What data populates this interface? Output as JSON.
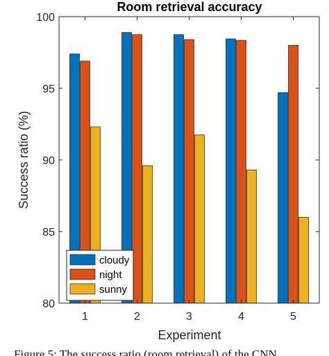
{
  "chart_data": {
    "type": "bar",
    "title": "Room  retrieval accuracy",
    "xlabel": "Experiment",
    "ylabel": "Success ratio (%)",
    "categories": [
      "1",
      "2",
      "3",
      "4",
      "5"
    ],
    "yticks": [
      "80",
      "85",
      "90",
      "95",
      "100"
    ],
    "ylim": [
      80,
      100
    ],
    "grid": false,
    "legend_position": "bottom-left",
    "series": [
      {
        "name": "cloudy",
        "color": "#0072BD",
        "values": [
          97.4,
          98.9,
          98.75,
          98.45,
          94.7
        ]
      },
      {
        "name": "night",
        "color": "#D95319",
        "values": [
          96.9,
          98.75,
          98.4,
          98.35,
          98.0
        ]
      },
      {
        "name": "sunny",
        "color": "#EDB120",
        "values": [
          92.3,
          89.6,
          91.75,
          89.3,
          86.0
        ]
      }
    ]
  },
  "caption": "Figure 5: The success ratio (room retrieval) of the CNN"
}
